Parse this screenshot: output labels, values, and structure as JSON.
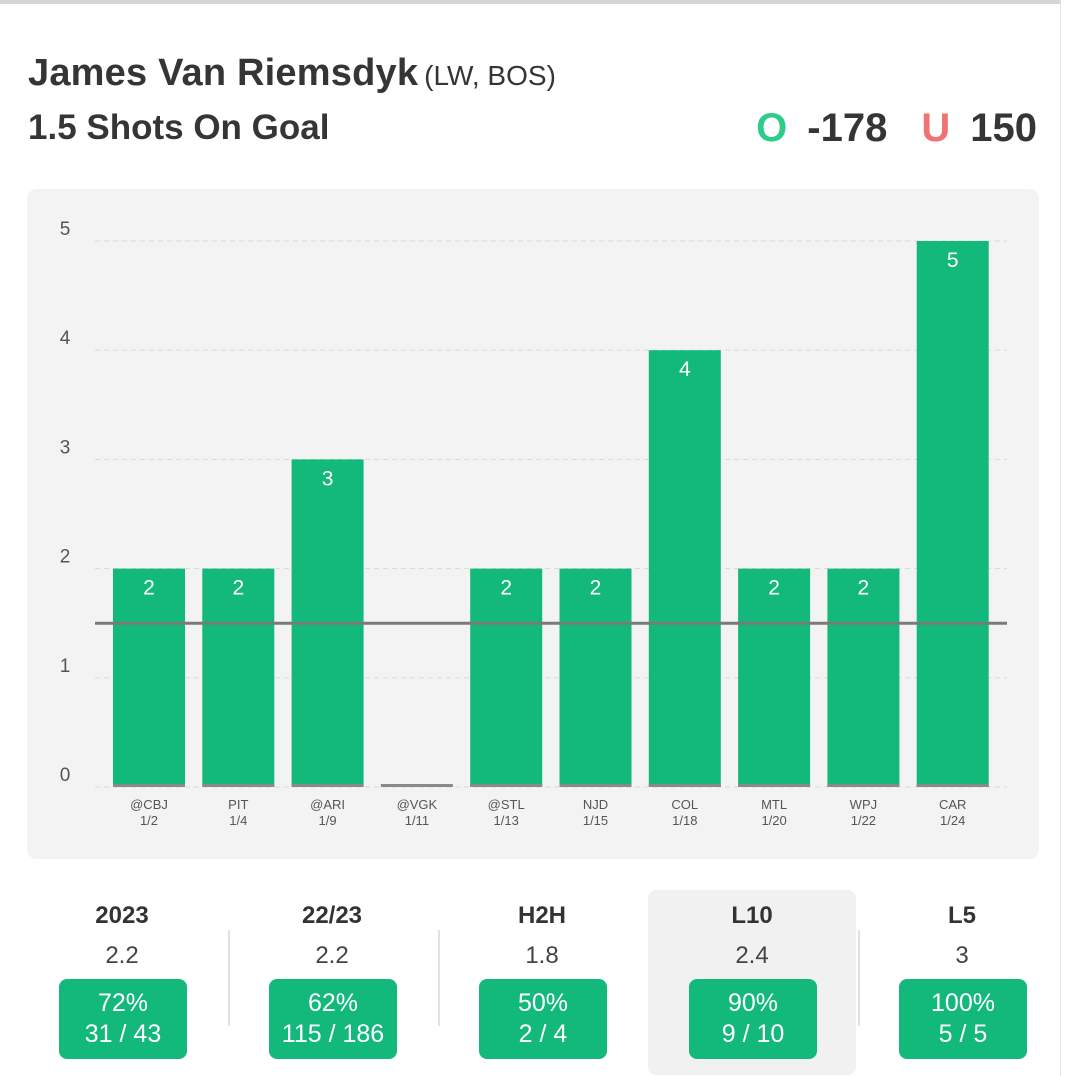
{
  "header": {
    "player_name": "James Van Riemsdyk",
    "player_meta": "(LW, BOS)",
    "prop": "1.5 Shots On Goal",
    "over_label": "O",
    "over_odds": "-178",
    "under_label": "U",
    "under_odds": "150"
  },
  "colors": {
    "bar": "#13b97b",
    "over": "#2ecc8a",
    "under": "#f07272",
    "line": "#7a7a7a",
    "panel": "#f3f3f3"
  },
  "chart_data": {
    "type": "bar",
    "title": "",
    "xlabel": "",
    "ylabel": "",
    "categories": [
      "@CBJ",
      "PIT",
      "@ARI",
      "@VGK",
      "@STL",
      "NJD",
      "COL",
      "MTL",
      "WPJ",
      "CAR"
    ],
    "dates": [
      "1/2",
      "1/4",
      "1/9",
      "1/11",
      "1/13",
      "1/15",
      "1/18",
      "1/20",
      "1/22",
      "1/24"
    ],
    "values": [
      2,
      2,
      3,
      0,
      2,
      2,
      4,
      2,
      2,
      5
    ],
    "threshold": 1.5,
    "ylim": [
      0,
      5
    ],
    "yticks": [
      0,
      1,
      2,
      3,
      4,
      5
    ],
    "grid": true
  },
  "stats": [
    {
      "label": "2023",
      "avg": "2.2",
      "pct": "72%",
      "record": "31 / 43",
      "active": false
    },
    {
      "label": "22/23",
      "avg": "2.2",
      "pct": "62%",
      "record": "115 / 186",
      "active": false
    },
    {
      "label": "H2H",
      "avg": "1.8",
      "pct": "50%",
      "record": "2 / 4",
      "active": false
    },
    {
      "label": "L10",
      "avg": "2.4",
      "pct": "90%",
      "record": "9 / 10",
      "active": true
    },
    {
      "label": "L5",
      "avg": "3",
      "pct": "100%",
      "record": "5 / 5",
      "active": false
    }
  ]
}
